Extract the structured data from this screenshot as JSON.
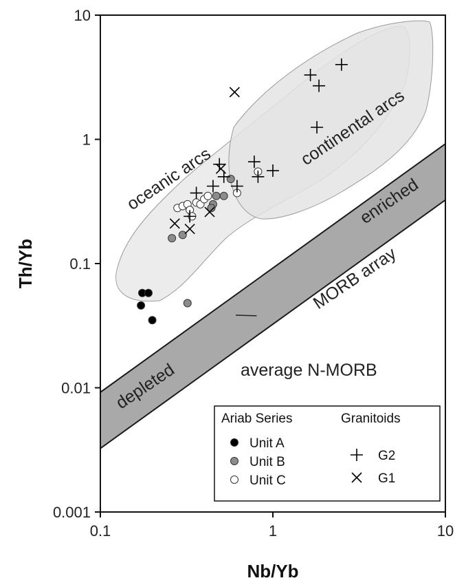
{
  "chart_data": {
    "type": "scatter",
    "title": "",
    "xlabel": "Nb/Yb",
    "ylabel": "Th/Yb",
    "xscale": "log",
    "yscale": "log",
    "xlim": [
      0.1,
      10
    ],
    "ylim": [
      0.001,
      10
    ],
    "x_ticks": [
      {
        "value": 0.1,
        "label": "0.1"
      },
      {
        "value": 1,
        "label": "1"
      },
      {
        "value": 10,
        "label": "10"
      }
    ],
    "y_ticks": [
      {
        "value": 0.001,
        "label": "0.001"
      },
      {
        "value": 0.01,
        "label": "0.01"
      },
      {
        "value": 0.1,
        "label": "0.1"
      },
      {
        "value": 1,
        "label": "1"
      },
      {
        "value": 10,
        "label": "10"
      }
    ],
    "grid": false,
    "legend_placement": "bottom-right",
    "legend": {
      "group1_title": "Ariab Series",
      "group2_title": "Granitoids"
    },
    "regions": {
      "oceanic_arcs": {
        "label": "oceanic arcs",
        "color": "#e9e9e9"
      },
      "continental_arcs": {
        "label": "continental arcs",
        "color": "#e4e4e4"
      },
      "morb_array": {
        "label": "MORB array",
        "color": "#a9a9a9",
        "upper_intercept": 0.092,
        "lower_intercept": 0.0325,
        "slope": 1
      },
      "enriched_label": "enriched",
      "depleted_label": "depleted",
      "average_nmorb": {
        "label": "average N-MORB",
        "x": 0.82,
        "y": 0.04
      }
    },
    "series": [
      {
        "name": "Unit A",
        "marker": "filled-circle",
        "color": "#000000",
        "points": [
          [
            0.175,
            0.058
          ],
          [
            0.19,
            0.058
          ],
          [
            0.172,
            0.046
          ],
          [
            0.2,
            0.035
          ]
        ]
      },
      {
        "name": "Unit B",
        "marker": "gray-circle",
        "color": "#8c8c8c",
        "points": [
          [
            0.26,
            0.16
          ],
          [
            0.3,
            0.17
          ],
          [
            0.32,
            0.048
          ],
          [
            0.45,
            0.3
          ],
          [
            0.47,
            0.35
          ],
          [
            0.52,
            0.35
          ],
          [
            0.57,
            0.48
          ],
          [
            0.44,
            0.28
          ]
        ]
      },
      {
        "name": "Unit C",
        "marker": "open-circle",
        "color": "#ffffff",
        "points": [
          [
            0.28,
            0.28
          ],
          [
            0.3,
            0.29
          ],
          [
            0.32,
            0.3
          ],
          [
            0.33,
            0.27
          ],
          [
            0.34,
            0.24
          ],
          [
            0.36,
            0.31
          ],
          [
            0.38,
            0.3
          ],
          [
            0.4,
            0.33
          ],
          [
            0.42,
            0.35
          ],
          [
            0.62,
            0.37
          ],
          [
            0.82,
            0.55
          ]
        ]
      },
      {
        "name": "G2",
        "marker": "plus",
        "color": "#000000",
        "points": [
          [
            0.33,
            0.24
          ],
          [
            0.36,
            0.37
          ],
          [
            0.45,
            0.42
          ],
          [
            0.49,
            0.63
          ],
          [
            0.52,
            0.5
          ],
          [
            0.62,
            0.42
          ],
          [
            0.78,
            0.66
          ],
          [
            0.82,
            0.5
          ],
          [
            1.65,
            3.3
          ],
          [
            1.8,
            1.25
          ],
          [
            1.85,
            2.7
          ],
          [
            2.5,
            4.0
          ],
          [
            1.0,
            0.56
          ]
        ]
      },
      {
        "name": "G1",
        "marker": "cross",
        "color": "#000000",
        "points": [
          [
            0.27,
            0.21
          ],
          [
            0.33,
            0.19
          ],
          [
            0.43,
            0.26
          ],
          [
            0.6,
            2.4
          ],
          [
            0.5,
            0.58
          ]
        ]
      }
    ]
  }
}
